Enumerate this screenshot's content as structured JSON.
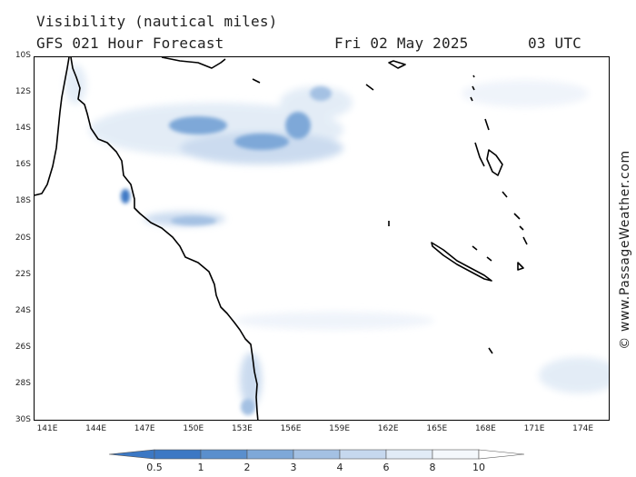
{
  "header": {
    "variable": "Visibility (nautical miles)",
    "model": "GFS 021 Hour Forecast",
    "date": "Fri 02 May 2025",
    "time": "03 UTC"
  },
  "axes": {
    "lat_labels": [
      "10S",
      "12S",
      "14S",
      "16S",
      "18S",
      "20S",
      "22S",
      "24S",
      "26S",
      "28S",
      "30S"
    ],
    "lon_labels": [
      "141E",
      "144E",
      "147E",
      "150E",
      "153E",
      "156E",
      "159E",
      "162E",
      "165E",
      "168E",
      "171E",
      "174E"
    ]
  },
  "legend": {
    "ticks": [
      "0.5",
      "1",
      "2",
      "3",
      "4",
      "6",
      "8",
      "10"
    ],
    "colors": [
      "#3c78c4",
      "#5a8fcd",
      "#7ea8d8",
      "#a4c1e3",
      "#c6d8ee",
      "#e1ebf6",
      "#f4f8fc"
    ]
  },
  "credit": "© www.PassageWeather.com",
  "colors": {
    "coastline": "#000000",
    "fog_dark": "#3c78c4",
    "fog_mid": "#7ea8d8",
    "fog_light": "#c6d8ee"
  }
}
